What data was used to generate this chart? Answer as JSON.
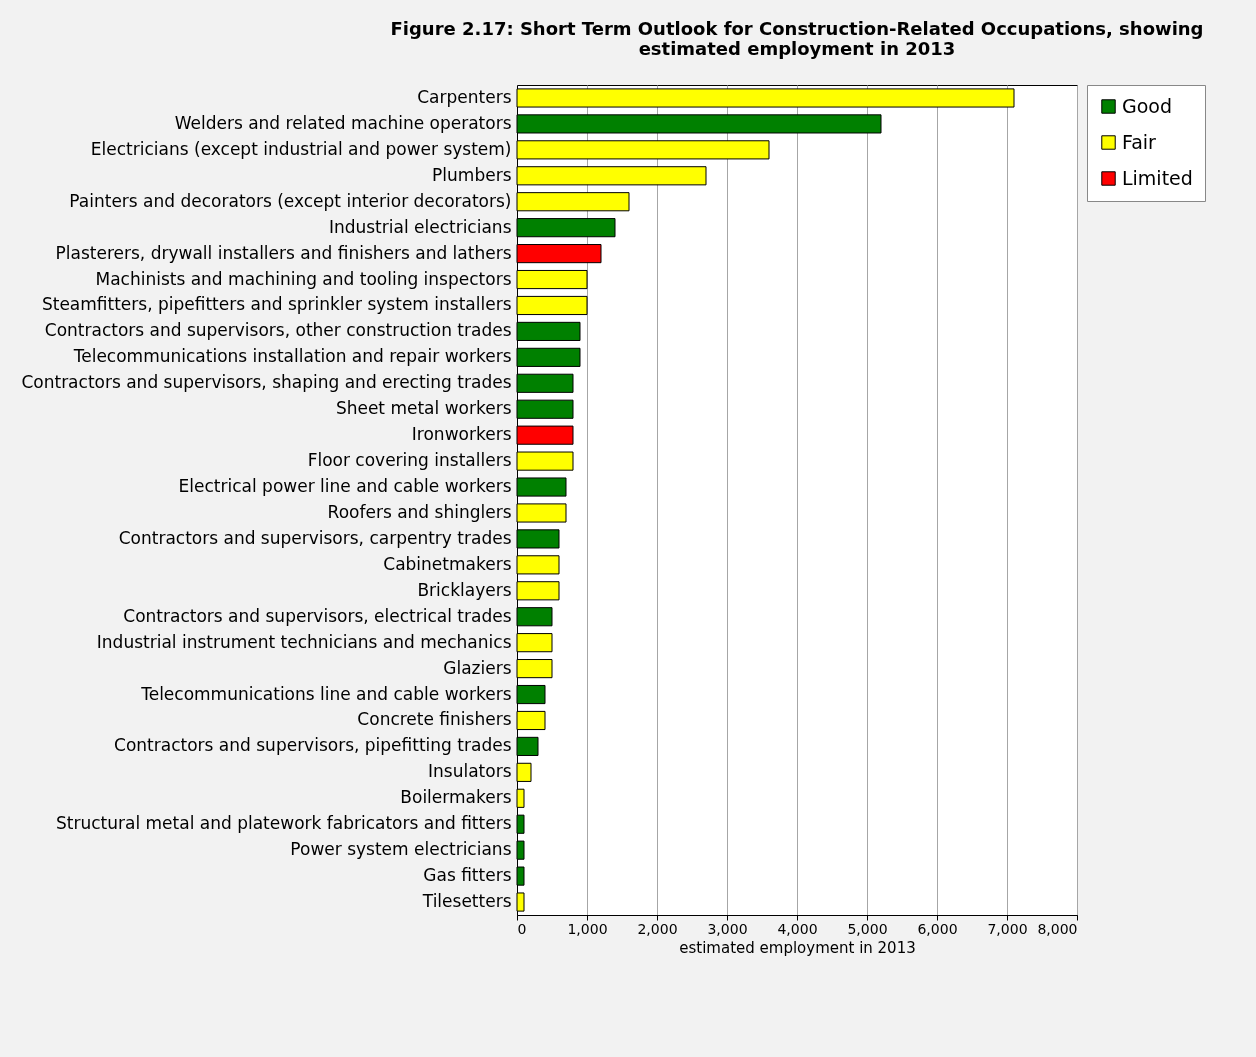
{
  "chart_data": {
    "type": "bar",
    "orientation": "horizontal",
    "title": "Figure 2.17: Short Term Outlook for Construction-Related Occupations, showing estimated employment in 2013",
    "xlabel": "estimated employment in 2013",
    "categories": [
      "Carpenters",
      "Welders and related machine operators",
      "Electricians (except industrial and power system)",
      "Plumbers",
      "Painters and decorators (except interior decorators)",
      "Industrial electricians",
      "Plasterers, drywall installers and finishers and lathers",
      "Machinists and machining and tooling inspectors",
      "Steamfitters, pipefitters and sprinkler system installers",
      "Contractors and supervisors, other construction trades",
      "Telecommunications installation and repair workers",
      "Contractors and supervisors, shaping and erecting trades",
      "Sheet metal workers",
      "Ironworkers",
      "Floor covering installers",
      "Electrical power line and cable workers",
      "Roofers and shinglers",
      "Contractors and supervisors, carpentry trades",
      "Cabinetmakers",
      "Bricklayers",
      "Contractors and supervisors, electrical trades",
      "Industrial instrument technicians and mechanics",
      "Glaziers",
      "Telecommunications line and cable workers",
      "Concrete finishers",
      "Contractors and supervisors, pipefitting trades",
      "Insulators",
      "Boilermakers",
      "Structural metal and platework fabricators and fitters",
      "Power system electricians",
      "Gas fitters",
      "Tilesetters"
    ],
    "series": [
      {
        "name": "Good",
        "color": "#008000",
        "values": [
          null,
          5200,
          null,
          null,
          null,
          1400,
          null,
          null,
          null,
          900,
          900,
          800,
          800,
          null,
          null,
          700,
          null,
          600,
          null,
          null,
          500,
          null,
          null,
          400,
          null,
          300,
          null,
          null,
          100,
          100,
          100,
          null
        ]
      },
      {
        "name": "Fair",
        "color": "#ffff00",
        "values": [
          7100,
          null,
          3600,
          2700,
          1600,
          null,
          null,
          1000,
          1000,
          null,
          null,
          null,
          null,
          null,
          800,
          null,
          700,
          null,
          600,
          600,
          null,
          500,
          500,
          null,
          400,
          null,
          200,
          100,
          null,
          null,
          null,
          100
        ]
      },
      {
        "name": "Limited",
        "color": "#ff0000",
        "values": [
          null,
          null,
          null,
          null,
          null,
          null,
          1200,
          null,
          null,
          null,
          null,
          null,
          null,
          800,
          null,
          null,
          null,
          null,
          null,
          null,
          null,
          null,
          null,
          null,
          null,
          null,
          null,
          null,
          null,
          null,
          null,
          null
        ]
      }
    ],
    "xlim": [
      0,
      8000
    ],
    "xticks": [
      {
        "value": 0,
        "label": "0"
      },
      {
        "value": 1000,
        "label": "1,000"
      },
      {
        "value": 2000,
        "label": "2,000"
      },
      {
        "value": 3000,
        "label": "3,000"
      },
      {
        "value": 4000,
        "label": "4,000"
      },
      {
        "value": 5000,
        "label": "5,000"
      },
      {
        "value": 6000,
        "label": "6,000"
      },
      {
        "value": 7000,
        "label": "7,000"
      },
      {
        "value": 8000,
        "label": "8,000"
      }
    ],
    "grid": "x",
    "legend": "right"
  }
}
